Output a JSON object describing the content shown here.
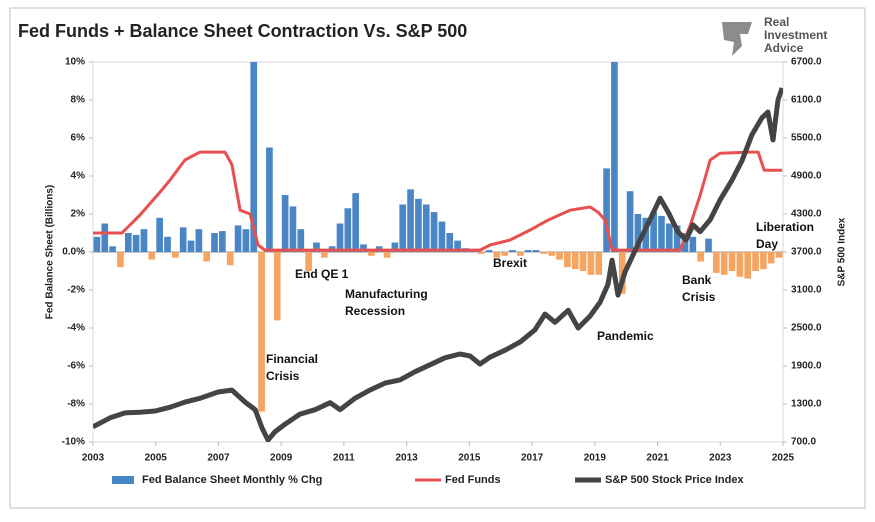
{
  "chart_data": {
    "type": "combo",
    "title": "Fed Funds + Balance Sheet Contraction Vs. S&P 500",
    "logo": "Real Investment Advice",
    "y_label": "Fed Balance Sheet (Billions)",
    "y2_label": "S&P 500 Index",
    "xlim": [
      2003,
      2025
    ],
    "xticks": [
      2003,
      2005,
      2007,
      2009,
      2011,
      2013,
      2015,
      2017,
      2019,
      2021,
      2023,
      2025
    ],
    "ylim": [
      -10,
      10
    ],
    "yticks": [
      {
        "value": -10,
        "label": "-10%"
      },
      {
        "value": -8,
        "label": "-8%"
      },
      {
        "value": -6,
        "label": "-6%"
      },
      {
        "value": -4,
        "label": "-4%"
      },
      {
        "value": -2,
        "label": "-2%"
      },
      {
        "value": 0,
        "label": "0.0%"
      },
      {
        "value": 2,
        "label": "2%"
      },
      {
        "value": 4,
        "label": "4%"
      },
      {
        "value": 6,
        "label": "6%"
      },
      {
        "value": 8,
        "label": "8%"
      },
      {
        "value": 10,
        "label": "10%"
      }
    ],
    "y2lim": [
      700,
      6700
    ],
    "y2ticks": [
      {
        "value": 700,
        "label": "700.0"
      },
      {
        "value": 1300,
        "label": "1300.0"
      },
      {
        "value": 1900,
        "label": "1900.0"
      },
      {
        "value": 2500,
        "label": "2500.0"
      },
      {
        "value": 3100,
        "label": "3100.0"
      },
      {
        "value": 3700,
        "label": "3700.0"
      },
      {
        "value": 4300,
        "label": "4300.0"
      },
      {
        "value": 4900,
        "label": "4900.0"
      },
      {
        "value": 5500,
        "label": "5500.0"
      },
      {
        "value": 6100,
        "label": "6100.0"
      },
      {
        "value": 6700,
        "label": "6700.0"
      }
    ],
    "annotations": [
      "Financial Crisis",
      "End QE 1",
      "Manufacturing Recession",
      "Brexit",
      "Pandemic",
      "Bank Crisis",
      "Liberation Day"
    ],
    "series": [
      {
        "name": "Fed Balance Sheet Monthly % Chg",
        "type": "bar",
        "color": "#4a86c5",
        "negative_color": "#f5a462",
        "x": [
          2003.125,
          2003.375,
          2003.625,
          2003.875,
          2004.125,
          2004.375,
          2004.625,
          2004.875,
          2005.125,
          2005.375,
          2005.625,
          2005.875,
          2006.125,
          2006.375,
          2006.625,
          2006.875,
          2007.125,
          2007.375,
          2007.625,
          2007.875,
          2008.125,
          2008.375,
          2008.625,
          2008.875,
          2009.125,
          2009.375,
          2009.625,
          2009.875,
          2010.125,
          2010.375,
          2010.625,
          2010.875,
          2011.125,
          2011.375,
          2011.625,
          2011.875,
          2012.125,
          2012.375,
          2012.625,
          2012.875,
          2013.125,
          2013.375,
          2013.625,
          2013.875,
          2014.125,
          2014.375,
          2014.625,
          2014.875,
          2015.125,
          2015.375,
          2015.625,
          2015.875,
          2016.125,
          2016.375,
          2016.625,
          2016.875,
          2017.125,
          2017.375,
          2017.625,
          2017.875,
          2018.125,
          2018.375,
          2018.625,
          2018.875,
          2019.125,
          2019.375,
          2019.625,
          2019.875,
          2020.125,
          2020.375,
          2020.625,
          2020.875,
          2021.125,
          2021.375,
          2021.625,
          2021.875,
          2022.125,
          2022.375,
          2022.625,
          2022.875,
          2023.125,
          2023.375,
          2023.625,
          2023.875,
          2024.125,
          2024.375,
          2024.625,
          2024.875
        ],
        "values": [
          0.8,
          1.5,
          0.3,
          -0.8,
          1.0,
          0.9,
          1.2,
          -0.4,
          1.8,
          0.8,
          -0.3,
          1.3,
          0.6,
          1.2,
          -0.5,
          1.0,
          1.1,
          -0.7,
          1.4,
          1.2,
          10.0,
          -8.4,
          5.5,
          -3.6,
          3.0,
          2.4,
          1.2,
          -1.0,
          0.5,
          -0.3,
          0.3,
          1.5,
          2.3,
          3.1,
          0.4,
          -0.2,
          0.3,
          -0.3,
          0.5,
          2.5,
          3.3,
          2.8,
          2.5,
          2.1,
          1.6,
          1.0,
          0.6,
          0.2,
          0.1,
          -0.1,
          0.1,
          -0.3,
          -0.2,
          0.1,
          -0.2,
          0.1,
          0.1,
          -0.1,
          -0.2,
          -0.4,
          -0.8,
          -0.9,
          -1.0,
          -1.2,
          -1.2,
          4.4,
          10.0,
          -2.2,
          3.2,
          2.0,
          1.8,
          2.1,
          1.9,
          1.5,
          1.4,
          1.0,
          0.8,
          -0.5,
          0.7,
          -1.1,
          -1.2,
          -1.0,
          -1.3,
          -1.4,
          -1.0,
          -0.9,
          -0.6,
          -0.3
        ]
      },
      {
        "name": "Fed Funds",
        "type": "line",
        "color": "#e8504f",
        "x": [
          2003.0,
          2003.92,
          2004.5,
          2005.14,
          2005.46,
          2005.93,
          2006.41,
          2007.21,
          2007.43,
          2007.69,
          2008.01,
          2008.26,
          2008.48,
          2015.34,
          2015.66,
          2016.3,
          2016.94,
          2017.51,
          2018.21,
          2018.85,
          2019.1,
          2019.33,
          2019.55,
          2021.72,
          2022.04,
          2022.36,
          2022.68,
          2022.99,
          2023.95,
          2024.21,
          2024.4,
          2024.97
        ],
        "values": [
          1.0,
          1.0,
          1.95,
          3.16,
          3.8,
          4.84,
          5.26,
          5.26,
          4.6,
          2.2,
          2.0,
          0.37,
          0.1,
          0.1,
          0.37,
          0.63,
          1.16,
          1.68,
          2.2,
          2.37,
          2.1,
          1.68,
          0.1,
          0.1,
          1.4,
          3.0,
          4.84,
          5.2,
          5.26,
          5.26,
          4.3,
          4.3
        ]
      },
      {
        "name": "S&P 500 Stock Price Index",
        "type": "line",
        "axis": "y2",
        "color": "#444444",
        "x": [
          2003.0,
          2003.54,
          2004.02,
          2004.5,
          2004.98,
          2005.46,
          2005.93,
          2006.41,
          2006.99,
          2007.43,
          2007.85,
          2008.17,
          2008.39,
          2008.58,
          2008.8,
          2009.12,
          2009.6,
          2010.08,
          2010.56,
          2010.88,
          2011.35,
          2011.83,
          2012.31,
          2012.79,
          2013.27,
          2013.75,
          2014.22,
          2014.7,
          2015.02,
          2015.34,
          2015.66,
          2016.14,
          2016.62,
          2017.09,
          2017.41,
          2017.73,
          2018.15,
          2018.47,
          2018.85,
          2019.17,
          2019.42,
          2019.55,
          2019.74,
          2019.96,
          2020.44,
          2020.76,
          2021.08,
          2021.34,
          2021.65,
          2021.91,
          2022.13,
          2022.36,
          2022.68,
          2022.99,
          2023.38,
          2023.7,
          2024.01,
          2024.33,
          2024.52,
          2024.68,
          2024.84,
          2024.97
        ],
        "values": [
          940,
          1080,
          1160,
          1170,
          1190,
          1250,
          1330,
          1390,
          1490,
          1520,
          1330,
          1210,
          920,
          730,
          860,
          980,
          1140,
          1210,
          1320,
          1210,
          1390,
          1520,
          1630,
          1680,
          1810,
          1920,
          2030,
          2090,
          2060,
          1930,
          2040,
          2150,
          2280,
          2470,
          2720,
          2590,
          2780,
          2500,
          2690,
          2910,
          3190,
          3570,
          3020,
          3380,
          3890,
          4210,
          4550,
          4330,
          4020,
          3890,
          4130,
          4020,
          4210,
          4520,
          4840,
          5150,
          5550,
          5820,
          5910,
          5470,
          6100,
          6290
        ]
      }
    ]
  }
}
